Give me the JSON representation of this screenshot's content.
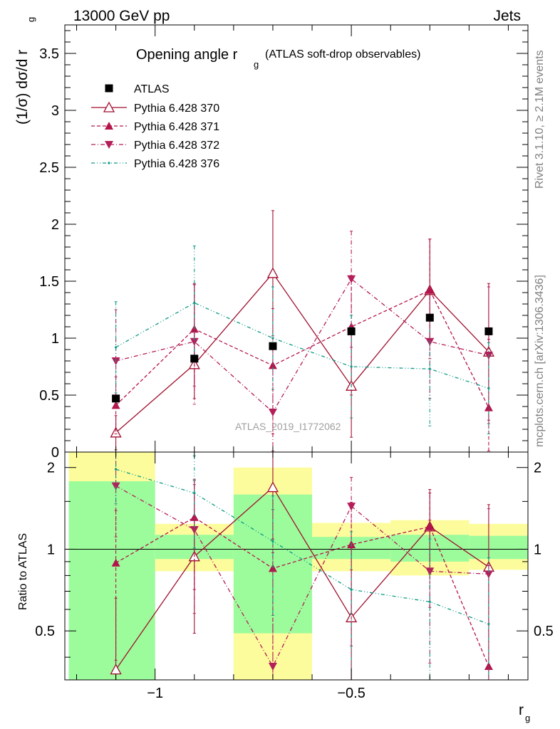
{
  "header": {
    "left": "13000 GeV pp",
    "right": "Jets"
  },
  "title": {
    "main": "Opening angle r",
    "sub": "g",
    "extra": "(ATLAS soft-drop observables)"
  },
  "side_labels": {
    "rivet": "Rivet 3.1.10, ≥ 2.1M events",
    "mcplots": "mcplots.cern.ch [arXiv:1306.3436]"
  },
  "watermark": "ATLAS_2019_I1772062",
  "colors": {
    "atlas": "#000000",
    "p370": "#a00f2e",
    "p371": "#b4144b",
    "p372": "#b41e5a",
    "p376": "#0e9a86",
    "band_inner": "#9cfc9c",
    "band_outer": "#fcfc9c"
  },
  "chart_data": [
    {
      "type": "scatter",
      "panel": "main",
      "ylabel": "(1/σ) dσ/d r_g",
      "ylim": [
        0,
        3.75
      ],
      "yticks": [
        "0",
        "0.5",
        "1",
        "1.5",
        "2",
        "2.5",
        "3",
        "3.5"
      ],
      "x": [
        -1.1,
        -0.9,
        -0.7,
        -0.5,
        -0.3,
        -0.15
      ],
      "series": [
        {
          "name": "ATLAS",
          "values": [
            0.47,
            0.82,
            0.93,
            1.06,
            1.18,
            1.06
          ]
        },
        {
          "name": "Pythia 6.428 370",
          "values": [
            0.17,
            0.77,
            1.57,
            0.58,
            1.42,
            0.88
          ],
          "err_hi": [
            0.15,
            0.7,
            0.55,
            0.45,
            0.45,
            0.6
          ],
          "err_lo": [
            0.15,
            0.3,
            0.55,
            0.45,
            0.45,
            0.6
          ]
        },
        {
          "name": "Pythia 6.428 371",
          "values": [
            0.41,
            1.08,
            0.76,
            1.1,
            1.42,
            0.39
          ],
          "err_hi": [
            0.25,
            0.4,
            0.5,
            0.45,
            0.45,
            0.6
          ],
          "err_lo": [
            0.25,
            0.5,
            0.6,
            0.6,
            0.6,
            0.39
          ]
        },
        {
          "name": "Pythia 6.428 372",
          "values": [
            0.8,
            0.97,
            0.35,
            1.52,
            0.97,
            0.85
          ],
          "err_hi": [
            0.45,
            0.5,
            0.55,
            0.42,
            0.48,
            0.6
          ],
          "err_lo": [
            0.4,
            0.55,
            0.35,
            0.6,
            0.5,
            0.6
          ]
        },
        {
          "name": "Pythia 6.428 376",
          "values": [
            0.92,
            1.31,
            1.0,
            0.75,
            0.73,
            0.56
          ],
          "err_hi": [
            0.4,
            0.5,
            0.45,
            0.45,
            0.45,
            0.4
          ],
          "err_lo": [
            0.4,
            0.5,
            0.45,
            0.45,
            0.5,
            0.4
          ]
        }
      ]
    },
    {
      "type": "scatter",
      "panel": "ratio",
      "xlabel": "r_g",
      "ylabel": "Ratio to ATLAS",
      "ylim": [
        0.33,
        2.28
      ],
      "yticks": [
        "0.5",
        "1",
        "2"
      ],
      "xlim": [
        -1.23,
        -0.05
      ],
      "xticks": [
        "−1",
        "−0.5"
      ],
      "band_edges": [
        -1.22,
        -1.0,
        -0.8,
        -0.6,
        -0.4,
        -0.2,
        -0.05
      ],
      "band_inner_lo": [
        0.0,
        0.92,
        0.49,
        0.92,
        0.9,
        0.92
      ],
      "band_inner_hi": [
        1.78,
        1.13,
        1.59,
        1.11,
        1.13,
        1.12
      ],
      "band_outer_lo": [
        0.0,
        0.83,
        0.0,
        0.83,
        0.8,
        0.84
      ],
      "band_outer_hi": [
        2.34,
        1.24,
        2.0,
        1.25,
        1.28,
        1.24
      ],
      "series": [
        {
          "name": "Pythia 6.428 370",
          "values": [
            0.36,
            0.94,
            1.69,
            0.56,
            1.21,
            0.86
          ],
          "err_hi": [
            0.3,
            0.85,
            0.6,
            0.45,
            0.4,
            0.6
          ],
          "err_lo": [
            0.3,
            0.45,
            0.6,
            0.4,
            0.4,
            0.6
          ]
        },
        {
          "name": "Pythia 6.428 371",
          "values": [
            0.89,
            1.31,
            0.85,
            1.04,
            1.21,
            0.37
          ],
          "err_hi": [
            0.5,
            0.5,
            0.55,
            0.45,
            0.45,
            0.5
          ],
          "err_lo": [
            0.5,
            0.6,
            0.6,
            0.6,
            0.6,
            0.37
          ]
        },
        {
          "name": "Pythia 6.428 372",
          "values": [
            1.71,
            1.18,
            0.37,
            1.44,
            0.83,
            0.81
          ],
          "err_hi": [
            0.6,
            0.55,
            0.6,
            0.4,
            0.45,
            0.6
          ],
          "err_lo": [
            0.6,
            0.6,
            0.37,
            0.6,
            0.45,
            0.6
          ]
        },
        {
          "name": "Pythia 6.428 376",
          "values": [
            1.97,
            1.61,
            1.07,
            0.71,
            0.64,
            0.53
          ],
          "err_hi": [
            0.5,
            0.6,
            0.5,
            0.45,
            0.45,
            0.4
          ],
          "err_lo": [
            0.5,
            0.6,
            0.5,
            0.45,
            0.5,
            0.4
          ]
        }
      ]
    }
  ]
}
